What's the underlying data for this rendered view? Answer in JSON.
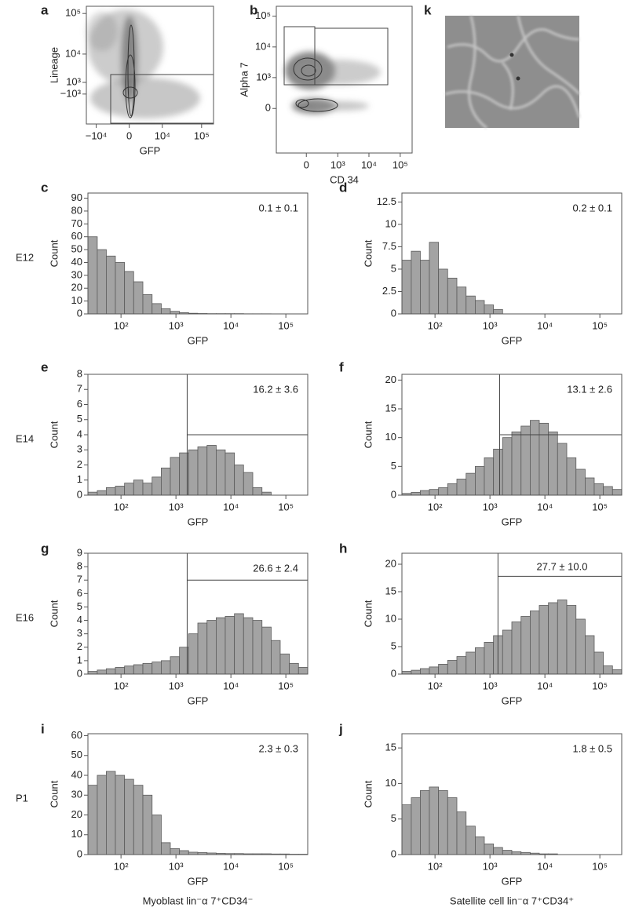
{
  "chart_data": [
    {
      "type": "scatter",
      "panel": "a",
      "x_label": "GFP",
      "y_label": "Lineage",
      "scale": "asinh",
      "xlim": [
        -18000,
        200000
      ],
      "xticks": [
        {
          "value": -10000,
          "label": "−10⁴"
        },
        0,
        {
          "value": 10000,
          "label": "10⁴"
        },
        {
          "value": 100000,
          "label": "10⁵"
        }
      ],
      "ylim": [
        -11000,
        150000
      ],
      "yticks": [
        {
          "value": 100000,
          "label": "10⁵"
        },
        {
          "value": 10000,
          "label": "10⁴"
        },
        {
          "value": 1000,
          "label": "10³"
        },
        {
          "value": -1000,
          "label": "−10³"
        }
      ]
    },
    {
      "type": "scatter",
      "panel": "b",
      "x_label": "CD 34",
      "y_label": "Alpha 7",
      "scale": "asinh",
      "xlim": [
        -900,
        240000
      ],
      "xticks": [
        0,
        {
          "value": 1000,
          "label": "10³"
        },
        {
          "value": 10000,
          "label": "10⁴"
        },
        {
          "value": 100000,
          "label": "10⁵"
        }
      ],
      "ylim": [
        -2800,
        210000
      ],
      "yticks": [
        {
          "value": 100000,
          "label": "10⁵"
        },
        {
          "value": 10000,
          "label": "10⁴"
        },
        {
          "value": 1000,
          "label": "10³"
        },
        0
      ]
    },
    {
      "type": "histogram",
      "panel": "c",
      "row_label": "E12",
      "annotation": "0.1 ± 0.1",
      "x_label": "GFP",
      "y_label": "Count",
      "xscale": "log",
      "bins": [
        25,
        37,
        54,
        79,
        116,
        170,
        250,
        368,
        540,
        790,
        1160,
        1700,
        2500,
        3680,
        5400,
        7900,
        11600,
        17000,
        25000,
        36800,
        54000,
        79000,
        116000,
        170000,
        250000
      ],
      "values": [
        60,
        50,
        45,
        40,
        33,
        25,
        15,
        8,
        4,
        2,
        1,
        0.5,
        0.3,
        0.2,
        0.2,
        0.2,
        0.2,
        0.1,
        0.1,
        0.1,
        0,
        0,
        0,
        0
      ],
      "xlim": [
        25,
        250000
      ],
      "xticks": [
        {
          "value": 100,
          "label": "10²"
        },
        {
          "value": 1000,
          "label": "10³"
        },
        {
          "value": 10000,
          "label": "10⁴"
        },
        {
          "value": 100000,
          "label": "10⁵"
        }
      ],
      "ylim": [
        0,
        94
      ],
      "yticks": [
        0,
        10,
        20,
        30,
        40,
        50,
        60,
        70,
        80,
        90
      ]
    },
    {
      "type": "histogram",
      "panel": "d",
      "annotation": "0.2 ± 0.1",
      "x_label": "GFP",
      "y_label": "Count",
      "xscale": "log",
      "bins": [
        25,
        37,
        54,
        79,
        116,
        170,
        250,
        368,
        540,
        790,
        1160,
        1700,
        2500,
        3680,
        5400,
        7900,
        11600,
        17000,
        25000,
        36800,
        54000,
        79000,
        116000,
        170000,
        250000
      ],
      "values": [
        6,
        7,
        6,
        8,
        5,
        4,
        3,
        2,
        1.5,
        1,
        0.5,
        0,
        0,
        0,
        0,
        0,
        0,
        0,
        0,
        0,
        0,
        0,
        0,
        0
      ],
      "xlim": [
        25,
        250000
      ],
      "xticks": [
        {
          "value": 100,
          "label": "10²"
        },
        {
          "value": 1000,
          "label": "10³"
        },
        {
          "value": 10000,
          "label": "10⁴"
        },
        {
          "value": 100000,
          "label": "10⁵"
        }
      ],
      "ylim": [
        0,
        13.5
      ],
      "yticks": [
        0,
        2.5,
        5,
        7.5,
        10,
        12.5
      ]
    },
    {
      "type": "histogram",
      "panel": "e",
      "row_label": "E14",
      "annotation": "16.2 ± 3.6",
      "x_label": "GFP",
      "y_label": "Count",
      "xscale": "log",
      "gate": {
        "x": 1600,
        "y": 4
      },
      "bins": [
        25,
        37,
        54,
        79,
        116,
        170,
        250,
        368,
        540,
        790,
        1160,
        1700,
        2500,
        3680,
        5400,
        7900,
        11600,
        17000,
        25000,
        36800,
        54000,
        79000,
        116000,
        170000,
        250000
      ],
      "values": [
        0.2,
        0.3,
        0.5,
        0.6,
        0.8,
        1,
        0.8,
        1.2,
        1.8,
        2.5,
        2.8,
        3,
        3.2,
        3.3,
        3,
        2.8,
        2,
        1.5,
        0.5,
        0.2,
        0,
        0,
        0,
        0
      ],
      "xlim": [
        25,
        250000
      ],
      "xticks": [
        {
          "value": 100,
          "label": "10²"
        },
        {
          "value": 1000,
          "label": "10³"
        },
        {
          "value": 10000,
          "label": "10⁴"
        },
        {
          "value": 100000,
          "label": "10⁵"
        }
      ],
      "ylim": [
        0,
        8
      ],
      "yticks": [
        0,
        1,
        2,
        3,
        4,
        5,
        6,
        7,
        8
      ]
    },
    {
      "type": "histogram",
      "panel": "f",
      "annotation": "13.1 ± 2.6",
      "x_label": "GFP",
      "y_label": "Count",
      "xscale": "log",
      "gate": {
        "x": 1500,
        "y": 10.5
      },
      "bins": [
        25,
        37,
        54,
        79,
        116,
        170,
        250,
        368,
        540,
        790,
        1160,
        1700,
        2500,
        3680,
        5400,
        7900,
        11600,
        17000,
        25000,
        36800,
        54000,
        79000,
        116000,
        170000,
        250000
      ],
      "values": [
        0.3,
        0.5,
        0.8,
        1,
        1.3,
        2,
        2.8,
        3.8,
        5,
        6.5,
        8,
        10,
        11,
        12,
        13,
        12.5,
        11,
        9,
        6.5,
        4.5,
        3,
        2,
        1.5,
        1
      ],
      "xlim": [
        25,
        250000
      ],
      "xticks": [
        {
          "value": 100,
          "label": "10²"
        },
        {
          "value": 1000,
          "label": "10³"
        },
        {
          "value": 10000,
          "label": "10⁴"
        },
        {
          "value": 100000,
          "label": "10⁵"
        }
      ],
      "ylim": [
        0,
        21
      ],
      "yticks": [
        0,
        5,
        10,
        15,
        20
      ]
    },
    {
      "type": "histogram",
      "panel": "g",
      "row_label": "E16",
      "annotation": "26.6 ± 2.4",
      "x_label": "GFP",
      "y_label": "Count",
      "xscale": "log",
      "gate": {
        "x": 1600,
        "y": 7
      },
      "bins": [
        25,
        37,
        54,
        79,
        116,
        170,
        250,
        368,
        540,
        790,
        1160,
        1700,
        2500,
        3680,
        5400,
        7900,
        11600,
        17000,
        25000,
        36800,
        54000,
        79000,
        116000,
        170000,
        250000
      ],
      "values": [
        0.2,
        0.3,
        0.4,
        0.5,
        0.6,
        0.7,
        0.8,
        0.9,
        1,
        1.3,
        2,
        3,
        3.8,
        4,
        4.2,
        4.3,
        4.5,
        4.2,
        4,
        3.5,
        2.5,
        1.5,
        0.8,
        0.5
      ],
      "xlim": [
        25,
        250000
      ],
      "xticks": [
        {
          "value": 100,
          "label": "10²"
        },
        {
          "value": 1000,
          "label": "10³"
        },
        {
          "value": 10000,
          "label": "10⁴"
        },
        {
          "value": 100000,
          "label": "10⁵"
        }
      ],
      "ylim": [
        0,
        9
      ],
      "yticks": [
        0,
        1,
        2,
        3,
        4,
        5,
        6,
        7,
        8,
        9
      ]
    },
    {
      "type": "histogram",
      "panel": "h",
      "annotation": "27.7 ± 10.0",
      "x_label": "GFP",
      "y_label": "Count",
      "xscale": "log",
      "gate": {
        "x": 1400,
        "y": 17.8
      },
      "bins": [
        25,
        37,
        54,
        79,
        116,
        170,
        250,
        368,
        540,
        790,
        1160,
        1700,
        2500,
        3680,
        5400,
        7900,
        11600,
        17000,
        25000,
        36800,
        54000,
        79000,
        116000,
        170000,
        250000
      ],
      "values": [
        0.5,
        0.7,
        1,
        1.3,
        1.8,
        2.5,
        3.2,
        4,
        4.8,
        5.8,
        7,
        8,
        9.5,
        10.5,
        11.5,
        12.5,
        13,
        13.5,
        12.5,
        10,
        7,
        4,
        1.5,
        0.8
      ],
      "xlim": [
        25,
        250000
      ],
      "xticks": [
        {
          "value": 100,
          "label": "10²"
        },
        {
          "value": 1000,
          "label": "10³"
        },
        {
          "value": 10000,
          "label": "10⁴"
        },
        {
          "value": 100000,
          "label": "10⁵"
        }
      ],
      "ylim": [
        0,
        22
      ],
      "yticks": [
        0,
        5,
        10,
        15,
        20
      ]
    },
    {
      "type": "histogram",
      "panel": "i",
      "row_label": "P1",
      "annotation": "2.3 ± 0.3",
      "x_label": "GFP",
      "y_label": "Count",
      "xscale": "log",
      "caption": "Myoblast lin⁻α 7⁺CD34⁻",
      "bins": [
        25,
        37,
        54,
        79,
        116,
        170,
        250,
        368,
        540,
        790,
        1160,
        1700,
        2500,
        3680,
        5400,
        7900,
        11600,
        17000,
        25000,
        36800,
        54000,
        79000,
        116000,
        170000,
        250000
      ],
      "values": [
        35,
        40,
        42,
        40,
        38,
        35,
        30,
        20,
        6,
        3,
        2,
        1.2,
        1,
        0.8,
        0.6,
        0.5,
        0.5,
        0.4,
        0.4,
        0.4,
        0.3,
        0.3,
        0.2,
        0.2
      ],
      "xlim": [
        25,
        250000
      ],
      "xticks": [
        {
          "value": 100,
          "label": "10²"
        },
        {
          "value": 1000,
          "label": "10³"
        },
        {
          "value": 10000,
          "label": "10⁴"
        },
        {
          "value": 100000,
          "label": "10⁵"
        }
      ],
      "ylim": [
        0,
        61
      ],
      "yticks": [
        0,
        10,
        20,
        30,
        40,
        50,
        60
      ]
    },
    {
      "type": "histogram",
      "panel": "j",
      "annotation": "1.8 ± 0.5",
      "x_label": "GFP",
      "y_label": "Count",
      "xscale": "log",
      "caption": "Satellite cell lin⁻α 7⁺CD34⁺",
      "bins": [
        25,
        37,
        54,
        79,
        116,
        170,
        250,
        368,
        540,
        790,
        1160,
        1700,
        2500,
        3680,
        5400,
        7900,
        11600,
        17000,
        25000,
        36800,
        54000,
        79000,
        116000,
        170000,
        250000
      ],
      "values": [
        7,
        8,
        9,
        9.5,
        9,
        8,
        6,
        4,
        2.5,
        1.5,
        1,
        0.6,
        0.4,
        0.3,
        0.2,
        0.1,
        0.1,
        0,
        0,
        0,
        0,
        0,
        0,
        0
      ],
      "xlim": [
        25,
        250000
      ],
      "xticks": [
        {
          "value": 100,
          "label": "10²"
        },
        {
          "value": 1000,
          "label": "10³"
        },
        {
          "value": 10000,
          "label": "10⁴"
        },
        {
          "value": 100000,
          "label": "10⁵"
        }
      ],
      "ylim": [
        0,
        17
      ],
      "yticks": [
        0,
        5,
        10,
        15
      ]
    }
  ],
  "image_panel": {
    "panel": "k"
  }
}
